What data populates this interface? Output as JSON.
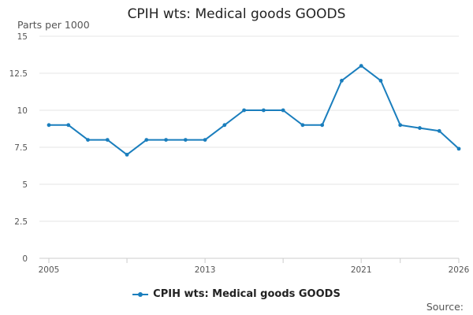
{
  "colors": {
    "series": "#1a7ebd",
    "grid": "#e6e6e6",
    "axis": "#cccccc"
  },
  "source_label": "Source:",
  "chart_data": {
    "type": "line",
    "title": "CPIH wts: Medical goods GOODS",
    "xlabel": "",
    "ylabel": "Parts per 1000",
    "xlim": [
      2005,
      2026
    ],
    "ylim": [
      0,
      15
    ],
    "yticks": [
      0,
      2.5,
      5,
      7.5,
      10,
      12.5,
      15
    ],
    "ytick_labels": [
      "0",
      "2.5",
      "5",
      "7.5",
      "10",
      "12.5",
      "15"
    ],
    "xticks_minor": [
      2005,
      2009,
      2013,
      2017,
      2021,
      2023,
      2026
    ],
    "xticks": [
      2005,
      2013,
      2021,
      2026
    ],
    "xtick_labels": [
      "2005",
      "2013",
      "2021",
      "2026"
    ],
    "legend": "bottom-center",
    "grid": true,
    "series": [
      {
        "name": "CPIH wts: Medical goods GOODS",
        "x": [
          2005,
          2006,
          2007,
          2008,
          2009,
          2010,
          2011,
          2012,
          2013,
          2014,
          2015,
          2016,
          2017,
          2018,
          2019,
          2020,
          2021,
          2022,
          2023,
          2024,
          2025,
          2026
        ],
        "values": [
          9,
          9,
          8,
          8,
          7,
          8,
          8,
          8,
          8,
          9,
          10,
          10,
          10,
          9,
          9,
          12,
          13,
          12,
          9,
          8.8,
          8.6,
          7.4
        ]
      }
    ]
  }
}
